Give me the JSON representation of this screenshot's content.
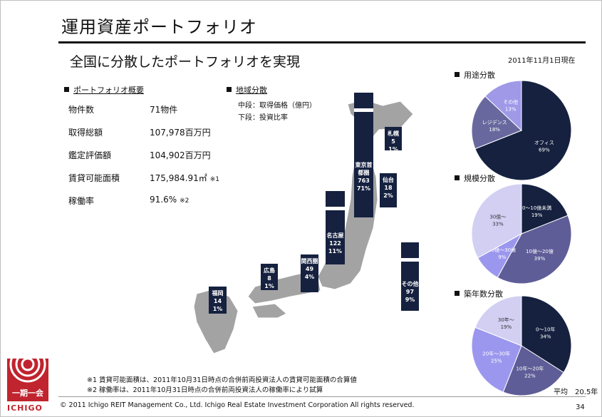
{
  "header": {
    "title": "運用資産ポートフォリオ",
    "subtitle": "全国に分散したポートフォリオを実現",
    "as_of": "2011年11月1日現在"
  },
  "overview": {
    "heading": "ポートフォリオ概要",
    "rows": [
      {
        "label": "物件数",
        "value": "71物件",
        "note": ""
      },
      {
        "label": "取得総額",
        "value": "107,978百万円",
        "note": ""
      },
      {
        "label": "鑑定評価額",
        "value": "104,902百万円",
        "note": ""
      },
      {
        "label": "賃貸可能面積",
        "value": "175,984.91㎡",
        "note": "※1"
      },
      {
        "label": "稼働率",
        "value": "91.6%",
        "note": "※2"
      }
    ]
  },
  "regional": {
    "heading": "地域分散",
    "legend_mid": "中段：取得価格（億円）",
    "legend_low": "下段：投資比率"
  },
  "chart_data": [
    {
      "type": "bar",
      "title": "地域分散",
      "categories": [
        "福岡",
        "広島",
        "関西圏",
        "名古屋",
        "東京首都圏",
        "仙台",
        "札幌",
        "その他"
      ],
      "values": [
        14,
        8,
        49,
        122,
        763,
        18,
        5,
        97
      ],
      "ratios": [
        "1%",
        "1%",
        "4%",
        "11%",
        "71%",
        "2%",
        "1%",
        "9%"
      ],
      "colors": {
        "bar": "#15213f",
        "map": "#a3a3a3"
      }
    },
    {
      "type": "pie",
      "title": "用途分散",
      "slices": [
        {
          "label": "オフィス",
          "value": 69,
          "color": "#15213f"
        },
        {
          "label": "レジデンス",
          "value": 18,
          "color": "#69689e"
        },
        {
          "label": "その他",
          "value": 13,
          "color": "#9f99e8"
        }
      ]
    },
    {
      "type": "pie",
      "title": "規模分散",
      "slices": [
        {
          "label": "0～10億未満",
          "value": 19,
          "color": "#15213f"
        },
        {
          "label": "10億～20億",
          "value": 39,
          "color": "#5f5d97"
        },
        {
          "label": "20億～30億",
          "value": 9,
          "color": "#9c97ee"
        },
        {
          "label": "30億～",
          "value": 33,
          "color": "#d2cff3"
        }
      ]
    },
    {
      "type": "pie",
      "title": "築年数分散",
      "slices": [
        {
          "label": "0～10年",
          "value": 34,
          "color": "#15213f"
        },
        {
          "label": "10年～20年",
          "value": 22,
          "color": "#5f5d97"
        },
        {
          "label": "20年～30年",
          "value": 25,
          "color": "#9c97ee"
        },
        {
          "label": "30年～",
          "value": 19,
          "color": "#d2cff3"
        }
      ]
    }
  ],
  "average_age": "平均　20.5年",
  "logo": {
    "mark": "一期一会",
    "name": "ICHIGO"
  },
  "notes": [
    "※1  賃貸可能面積は、2011年10月31日時点の合併前両投資法人の賃貸可能面積の合算値",
    "※2  稼働率は、2011年10月31日時点の合併前両投資法人の稼働率により試算"
  ],
  "footer": {
    "copyright": "© 2011 Ichigo REIT Management Co., Ltd.  Ichigo Real Estate Investment Corporation  All rights reserved.",
    "page": "34"
  }
}
